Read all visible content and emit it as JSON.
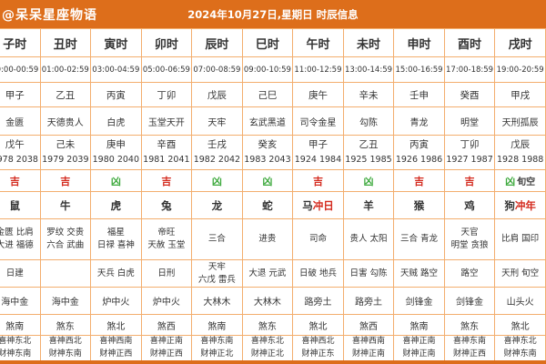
{
  "header": {
    "brand": "@呆呆星座物语",
    "title": "2024年10月27日,星期日 时辰信息"
  },
  "colors": {
    "header_bg": "#dd6e1b",
    "table_border": "#f3ae6e",
    "auspicious_red": "#d42a1e",
    "inauspicious_green": "#3faa3f"
  },
  "table": {
    "hours": [
      "子时",
      "丑时",
      "寅时",
      "卯时",
      "辰时",
      "巳时",
      "午时",
      "未时",
      "申时",
      "酉时",
      "戌时"
    ],
    "times": [
      "00:00-00:59",
      "01:00-02:59",
      "03:00-04:59",
      "05:00-06:59",
      "07:00-08:59",
      "09:00-10:59",
      "11:00-12:59",
      "13:00-14:59",
      "15:00-16:59",
      "17:00-18:59",
      "19:00-20:59"
    ],
    "ganzhi": [
      "甲子",
      "乙丑",
      "丙寅",
      "丁卯",
      "戊辰",
      "己巳",
      "庚午",
      "辛未",
      "壬申",
      "癸酉",
      "甲戌"
    ],
    "huangdao": [
      "金匮",
      "天德贵人",
      "白虎",
      "玉堂天开",
      "天牢",
      "玄武黑道",
      "司令金星",
      "勾陈",
      "青龙",
      "明堂",
      "天刑孤辰"
    ],
    "chong": [
      {
        "ganzhi": "戊午",
        "years": "1978 2038"
      },
      {
        "ganzhi": "己未",
        "years": "1979 2039"
      },
      {
        "ganzhi": "庚申",
        "years": "1980 2040"
      },
      {
        "ganzhi": "辛酉",
        "years": "1981 2041"
      },
      {
        "ganzhi": "壬戌",
        "years": "1982 2042"
      },
      {
        "ganzhi": "癸亥",
        "years": "1983 2043"
      },
      {
        "ganzhi": "甲子",
        "years": "1924 1984"
      },
      {
        "ganzhi": "乙丑",
        "years": "1925 1985"
      },
      {
        "ganzhi": "丙寅",
        "years": "1926 1986"
      },
      {
        "ganzhi": "丁卯",
        "years": "1927 1987"
      },
      {
        "ganzhi": "戊辰",
        "years": "1928 1988"
      }
    ],
    "luck": [
      {
        "mark": "吉",
        "extra": ""
      },
      {
        "mark": "吉",
        "extra": ""
      },
      {
        "mark": "凶",
        "extra": ""
      },
      {
        "mark": "吉",
        "extra": ""
      },
      {
        "mark": "凶",
        "extra": ""
      },
      {
        "mark": "凶",
        "extra": ""
      },
      {
        "mark": "吉",
        "extra": ""
      },
      {
        "mark": "凶",
        "extra": ""
      },
      {
        "mark": "吉",
        "extra": ""
      },
      {
        "mark": "吉",
        "extra": ""
      },
      {
        "mark": "凶",
        "extra": "旬空"
      }
    ],
    "zodiac": [
      {
        "animal": "鼠",
        "clash": ""
      },
      {
        "animal": "牛",
        "clash": ""
      },
      {
        "animal": "虎",
        "clash": ""
      },
      {
        "animal": "兔",
        "clash": ""
      },
      {
        "animal": "龙",
        "clash": ""
      },
      {
        "animal": "蛇",
        "clash": ""
      },
      {
        "animal": "马",
        "clash": "冲日"
      },
      {
        "animal": "羊",
        "clash": ""
      },
      {
        "animal": "猴",
        "clash": ""
      },
      {
        "animal": "鸡",
        "clash": ""
      },
      {
        "animal": "狗",
        "clash": "冲年"
      }
    ],
    "jishen": [
      [
        "金匮 比肩",
        "大进 福德"
      ],
      [
        "罗纹 交贵",
        "六合 武曲"
      ],
      [
        "福星",
        "日禄 喜神"
      ],
      [
        "帝旺",
        "天赦 玉堂"
      ],
      [
        "三合"
      ],
      [
        "进贵"
      ],
      [
        "司命"
      ],
      [
        "贵人 太阳"
      ],
      [
        "三合 青龙"
      ],
      [
        "天官",
        "明堂 贪狼"
      ],
      [
        "比肩 国印"
      ]
    ],
    "xiongshen": [
      [
        "日建"
      ],
      [
        ""
      ],
      [
        "天兵 白虎"
      ],
      [
        "日刑"
      ],
      [
        "天牢",
        "六戊 雷兵"
      ],
      [
        "大退 元武"
      ],
      [
        "日破 地兵"
      ],
      [
        "日害 勾陈"
      ],
      [
        "天贼 路空"
      ],
      [
        "路空"
      ],
      [
        "天刑 旬空"
      ]
    ],
    "nayin": [
      "海中金",
      "海中金",
      "炉中火",
      "炉中火",
      "大林木",
      "大林木",
      "路旁土",
      "路旁土",
      "剑锋金",
      "剑锋金",
      "山头火"
    ],
    "sha": [
      "煞南",
      "煞东",
      "煞北",
      "煞西",
      "煞南",
      "煞东",
      "煞北",
      "煞西",
      "煞南",
      "煞东",
      "煞北"
    ],
    "directions": [
      [
        "喜神东北",
        "财神东南"
      ],
      [
        "喜神西北",
        "财神东南"
      ],
      [
        "喜神西南",
        "财神正西"
      ],
      [
        "喜神正南",
        "财神正西"
      ],
      [
        "喜神东南",
        "财神正北"
      ],
      [
        "喜神东北",
        "财神正北"
      ],
      [
        "喜神西北",
        "财神正东"
      ],
      [
        "喜神西南",
        "财神正南"
      ],
      [
        "喜神正南",
        "财神正南"
      ],
      [
        "喜神东南",
        "财神正西"
      ],
      [
        "喜神东北",
        "财神东南"
      ]
    ]
  }
}
